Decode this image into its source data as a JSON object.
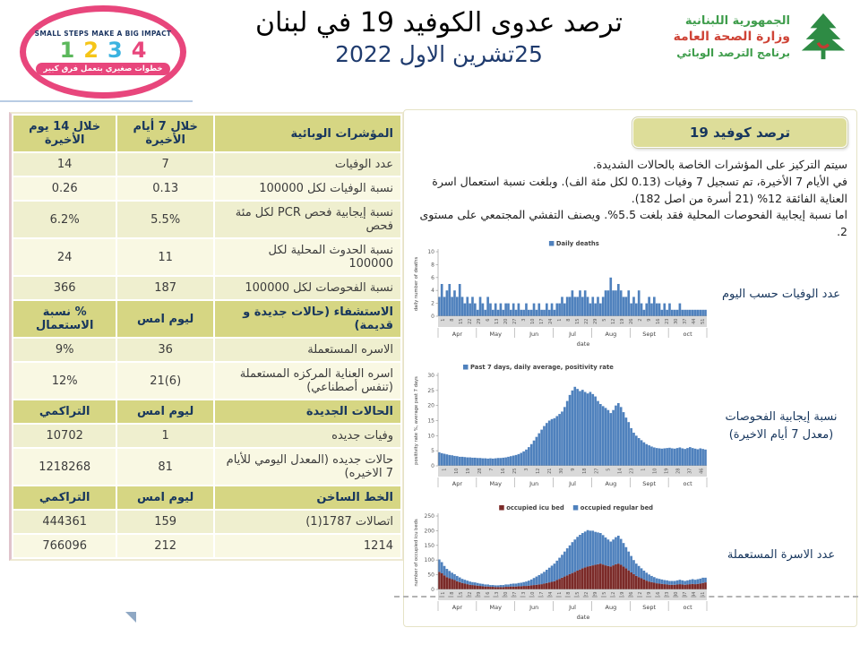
{
  "header": {
    "title": "ترصد عدوى الكوفيد 19 في لبنان",
    "date": "25تشرين الاول 2022",
    "badge": {
      "slogan": "SMALL STEPS MAKE A BIG IMPACT",
      "numbers": [
        {
          "n": "1",
          "color": "#5cb85c"
        },
        {
          "n": "2",
          "color": "#f5c518"
        },
        {
          "n": "3",
          "color": "#3bb3e0"
        },
        {
          "n": "4",
          "color": "#e8467c"
        }
      ],
      "arabic": "خطوات صغيري بتعمل فرق كبير"
    },
    "moph": {
      "line1": "الجمهورية اللبنانية",
      "line2": "وزارة الصحة العامة",
      "line3": "برنامج الترصد الوبائي"
    }
  },
  "table": {
    "rows": [
      {
        "header": true,
        "cells": [
          "المؤشرات الوبائية",
          "خلال 7 أيام الأخيرة",
          "خلال 14 يوم الأخيرة"
        ]
      },
      {
        "header": false,
        "cells": [
          "عدد الوفيات",
          "7",
          "14"
        ]
      },
      {
        "header": false,
        "cells": [
          "نسبة الوفيات لكل 100000",
          "0.13",
          "0.26"
        ]
      },
      {
        "header": false,
        "cells": [
          "نسبة إيجابية فحص PCR لكل مئة فحص",
          "5.5%",
          "6.2%"
        ]
      },
      {
        "header": false,
        "cells": [
          "نسبة الحدوث المحلية لكل 100000",
          "11",
          "24"
        ]
      },
      {
        "header": false,
        "cells": [
          "نسبة الفحوصات لكل 100000",
          "187",
          "366"
        ]
      },
      {
        "header": true,
        "cells": [
          "الاستشفاء (حالات جديدة و قديمة)",
          "ليوم امس",
          "% نسبة الاستعمال"
        ]
      },
      {
        "header": false,
        "cells": [
          "الاسره المستعملة",
          "36",
          "9%"
        ]
      },
      {
        "header": false,
        "cells": [
          "اسره العناية المركزه المستعملة (تنفس أصطناعي)",
          "21(6)",
          "12%"
        ]
      },
      {
        "header": true,
        "cells": [
          "الحالات الجديدة",
          "ليوم امس",
          "التراكمي"
        ]
      },
      {
        "header": false,
        "cells": [
          "وفيات جديده",
          "1",
          "10702"
        ]
      },
      {
        "header": false,
        "cells": [
          "حالات جديده (المعدل اليومي للأيام 7 الاخيره)",
          "81",
          "1218268"
        ]
      },
      {
        "header": true,
        "cells": [
          "الخط الساخن",
          "ليوم امس",
          "التراكمي"
        ]
      },
      {
        "header": false,
        "cells": [
          "اتصالات 1787(1)",
          "159",
          "444361"
        ]
      },
      {
        "header": false,
        "cells": [
          "1214",
          "212",
          "766096"
        ]
      }
    ]
  },
  "panel": {
    "title": "ترصد كوفيد 19",
    "paragraph": [
      "سيتم التركيز على المؤشرات الخاصة بالحالات الشديدة.",
      "في الأيام 7 الأخيرة، تم تسجيل 7 وفيات (0.13 لكل مئة الف). وبلغت نسبة استعمال اسرة العناية الفائقة 12% (21 أسرة من اصل 182).",
      "اما نسبة إيجابية الفحوصات المحلية فقد بلغت 5.5%. ويصنف التفشي المجتمعي على مستوى 2."
    ],
    "chart_labels": {
      "deaths": "عدد الوفيات حسب اليوم",
      "positivity_line1": "نسبة إيجابية الفحوصات",
      "positivity_line2": "(معدل 7 أيام الاخيرة)",
      "beds": "عدد الاسرة المستعملة"
    }
  },
  "chart_data": [
    {
      "type": "bar",
      "title": "Daily deaths",
      "ylabel": "daily number of deaths",
      "xlabel": "date",
      "ymax": 10,
      "yticks": [
        0,
        2,
        4,
        6,
        8,
        10
      ],
      "months": [
        "Apr",
        "May",
        "Jun",
        "Jul",
        "Aug",
        "Sept",
        "oct"
      ],
      "xticks": [
        "1",
        "8",
        "15",
        "22",
        "29",
        "6",
        "13",
        "20",
        "27",
        "3",
        "10",
        "17",
        "24",
        "1",
        "8",
        "15",
        "22",
        "29",
        "5",
        "12",
        "19",
        "26",
        "2",
        "9",
        "16",
        "23",
        "30",
        "37",
        "44",
        "51"
      ],
      "legend": [
        {
          "label": "Daily deaths",
          "color": "#4f81bd"
        }
      ],
      "legend_align": "center",
      "series": [
        {
          "name": "Daily deaths",
          "color": "#4f81bd",
          "values": [
            3,
            5,
            3,
            4,
            5,
            3,
            4,
            3,
            5,
            3,
            2,
            3,
            2,
            3,
            2,
            1,
            3,
            2,
            1,
            3,
            2,
            1,
            2,
            1,
            2,
            1,
            2,
            2,
            1,
            2,
            1,
            2,
            1,
            1,
            2,
            1,
            1,
            2,
            1,
            2,
            1,
            1,
            2,
            1,
            2,
            1,
            2,
            2,
            3,
            2,
            3,
            3,
            4,
            3,
            3,
            4,
            3,
            4,
            3,
            2,
            3,
            2,
            3,
            2,
            3,
            4,
            4,
            6,
            4,
            4,
            5,
            4,
            3,
            3,
            4,
            2,
            3,
            2,
            4,
            2,
            1,
            2,
            3,
            2,
            3,
            2,
            2,
            1,
            2,
            1,
            2,
            1,
            1,
            1,
            2,
            1,
            1,
            1,
            1,
            1,
            1,
            1,
            1,
            1,
            1
          ]
        }
      ]
    },
    {
      "type": "area",
      "title": "Past 7 days, daily average, positivity rate",
      "ylabel": "positivity rate %, average past 7 days",
      "xlabel": "",
      "ymax": 30,
      "yticks": [
        0,
        5,
        10,
        15,
        20,
        25,
        30
      ],
      "months": [
        "Apr",
        "May",
        "Jun",
        "Jul",
        "Aug",
        "Sept",
        "oct"
      ],
      "xticks": [
        "1",
        "10",
        "19",
        "28",
        "7",
        "16",
        "25",
        "3",
        "12",
        "21",
        "30",
        "9",
        "18",
        "27",
        "5",
        "14",
        "23",
        "1",
        "10",
        "19",
        "28",
        "37",
        "46"
      ],
      "legend": [
        {
          "label": "Past 7 days, daily average, positivity rate",
          "color": "#4f81bd"
        }
      ],
      "legend_align": "left",
      "series": [
        {
          "name": "Past 7 days, daily average, positivity rate",
          "color": "#4f81bd",
          "values": [
            4.5,
            4.2,
            4,
            3.8,
            3.6,
            3.5,
            3.3,
            3.2,
            3,
            3,
            2.9,
            2.8,
            2.8,
            2.7,
            2.7,
            2.6,
            2.6,
            2.5,
            2.5,
            2.4,
            2.5,
            2.4,
            2.5,
            2.6,
            2.6,
            2.7,
            2.8,
            3,
            3.2,
            3.4,
            3.6,
            3.9,
            4.3,
            4.8,
            5.4,
            6.2,
            7.2,
            8.4,
            9.6,
            10.8,
            12,
            13.2,
            14.2,
            15,
            15.5,
            15.8,
            16.5,
            17.2,
            18,
            19.5,
            21.5,
            23.5,
            25,
            26.2,
            25.5,
            24.8,
            25.2,
            24.5,
            24,
            24.5,
            23.8,
            23,
            21.5,
            20.5,
            19.8,
            19.2,
            18.5,
            17.5,
            18.5,
            20,
            20.8,
            19.5,
            17.8,
            16,
            14.5,
            12.5,
            11,
            10,
            9.2,
            8.5,
            7.8,
            7.2,
            6.8,
            6.4,
            6.1,
            5.9,
            5.8,
            5.7,
            5.8,
            5.9,
            6,
            5.8,
            5.7,
            5.9,
            6.1,
            5.8,
            5.6,
            5.9,
            6.2,
            5.9,
            5.7,
            5.5,
            5.8,
            5.6,
            5.4
          ]
        }
      ]
    },
    {
      "type": "stacked-bar",
      "title": "occupied beds",
      "ylabel": "number of occupied icu beds",
      "xlabel": "date",
      "ymax": 250,
      "yticks": [
        0,
        50,
        100,
        150,
        200,
        250
      ],
      "months": [
        "Apr",
        "May",
        "Jun",
        "Jul",
        "Aug",
        "Sept",
        "oct"
      ],
      "xticks": [
        "1",
        "8",
        "15",
        "22",
        "29",
        "6",
        "13",
        "20",
        "27",
        "3",
        "10",
        "17",
        "24",
        "1",
        "8",
        "15",
        "22",
        "29",
        "5",
        "12",
        "19",
        "26",
        "2",
        "9",
        "16",
        "23",
        "30",
        "37",
        "44",
        "51"
      ],
      "legend": [
        {
          "label": "occupied icu bed",
          "color": "#7b2a28"
        },
        {
          "label": "occupied regular bed",
          "color": "#4f81bd"
        }
      ],
      "legend_align": "center",
      "series": [
        {
          "name": "occupied icu bed",
          "color": "#7b2a28",
          "values": [
            60,
            55,
            48,
            42,
            38,
            35,
            32,
            28,
            25,
            22,
            20,
            18,
            16,
            15,
            14,
            13,
            12,
            11,
            10,
            10,
            9,
            9,
            8,
            8,
            8,
            8,
            9,
            9,
            10,
            10,
            10,
            11,
            11,
            12,
            12,
            13,
            14,
            15,
            16,
            17,
            18,
            20,
            22,
            24,
            26,
            28,
            32,
            36,
            40,
            44,
            48,
            52,
            56,
            60,
            64,
            68,
            72,
            75,
            78,
            80,
            82,
            84,
            86,
            88,
            85,
            82,
            80,
            78,
            82,
            86,
            88,
            84,
            78,
            72,
            65,
            58,
            52,
            46,
            42,
            38,
            34,
            30,
            27,
            25,
            23,
            21,
            20,
            19,
            18,
            17,
            16,
            16,
            16,
            17,
            18,
            17,
            16,
            17,
            18,
            19,
            18,
            19,
            20,
            22,
            24
          ]
        },
        {
          "name": "occupied regular bed",
          "color": "#4f81bd",
          "values": [
            42,
            38,
            32,
            28,
            25,
            22,
            20,
            18,
            16,
            14,
            13,
            12,
            11,
            10,
            10,
            9,
            8,
            8,
            7,
            7,
            6,
            6,
            6,
            6,
            7,
            7,
            8,
            8,
            9,
            10,
            10,
            11,
            12,
            13,
            15,
            17,
            20,
            24,
            28,
            32,
            36,
            40,
            45,
            50,
            55,
            60,
            66,
            72,
            78,
            85,
            92,
            98,
            105,
            110,
            115,
            118,
            120,
            122,
            124,
            120,
            118,
            112,
            108,
            104,
            100,
            95,
            90,
            85,
            88,
            92,
            95,
            88,
            80,
            72,
            64,
            56,
            48,
            42,
            38,
            34,
            30,
            27,
            24,
            21,
            19,
            17,
            16,
            15,
            14,
            14,
            13,
            13,
            13,
            14,
            15,
            14,
            13,
            14,
            15,
            16,
            15,
            16,
            17,
            18,
            16
          ]
        }
      ]
    }
  ]
}
